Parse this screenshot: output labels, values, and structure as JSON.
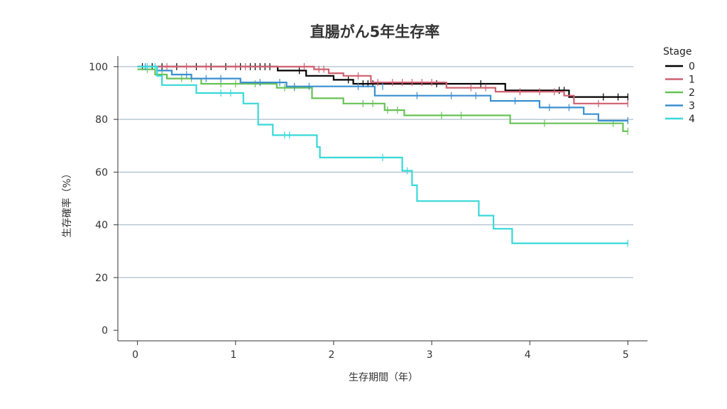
{
  "chart_data": {
    "type": "line",
    "subtype": "kaplan-meier-step",
    "title": "直腸がん5年生存率",
    "xlabel": "生存期間（年）",
    "ylabel": "生存確率（%）",
    "xlim": [
      -0.2,
      5.2
    ],
    "ylim": [
      -4,
      104
    ],
    "xticks": [
      0,
      1,
      2,
      3,
      4,
      5
    ],
    "xtick_labels": [
      "0",
      "1",
      "2",
      "3",
      "4",
      "5"
    ],
    "yticks": [
      0,
      20,
      40,
      60,
      80,
      100
    ],
    "ytick_labels": [
      "0",
      "20",
      "40",
      "60",
      "80",
      "100"
    ],
    "grid": "horizontal",
    "legend": {
      "title": "Stage",
      "position": "top-right"
    },
    "series": [
      {
        "name": "0",
        "color": "#000000",
        "steps": [
          [
            0,
            100
          ],
          [
            1.43,
            100
          ],
          [
            1.43,
            98.5
          ],
          [
            1.72,
            98.5
          ],
          [
            1.72,
            96.5
          ],
          [
            2.0,
            96.5
          ],
          [
            2.0,
            95
          ],
          [
            2.2,
            95
          ],
          [
            2.2,
            93.5
          ],
          [
            3.75,
            93.5
          ],
          [
            3.75,
            91
          ],
          [
            4.4,
            91
          ],
          [
            4.4,
            88.5
          ],
          [
            5.0,
            88.5
          ]
        ],
        "censored": [
          [
            0.05,
            100
          ],
          [
            0.15,
            100
          ],
          [
            0.25,
            100
          ],
          [
            0.4,
            100
          ],
          [
            0.6,
            100
          ],
          [
            0.75,
            100
          ],
          [
            0.9,
            100
          ],
          [
            1.05,
            100
          ],
          [
            1.15,
            100
          ],
          [
            1.2,
            100
          ],
          [
            1.25,
            100
          ],
          [
            1.3,
            100
          ],
          [
            1.35,
            100
          ],
          [
            1.65,
            98.5
          ],
          [
            2.15,
            95
          ],
          [
            2.3,
            93.5
          ],
          [
            2.35,
            93.5
          ],
          [
            2.4,
            93.5
          ],
          [
            3.05,
            93.5
          ],
          [
            3.5,
            93.5
          ],
          [
            4.3,
            91
          ],
          [
            4.35,
            91
          ],
          [
            4.75,
            88.5
          ],
          [
            4.9,
            88.5
          ],
          [
            5.0,
            88.5
          ]
        ]
      },
      {
        "name": "1",
        "color": "#d06070",
        "steps": [
          [
            0,
            100
          ],
          [
            1.8,
            100
          ],
          [
            1.8,
            99
          ],
          [
            1.95,
            99
          ],
          [
            1.95,
            97.5
          ],
          [
            2.1,
            97.5
          ],
          [
            2.1,
            96.5
          ],
          [
            2.38,
            96.5
          ],
          [
            2.38,
            94
          ],
          [
            3.15,
            94
          ],
          [
            3.15,
            92
          ],
          [
            3.65,
            92
          ],
          [
            3.65,
            90.5
          ],
          [
            4.35,
            90.5
          ],
          [
            4.35,
            89
          ],
          [
            4.45,
            89
          ],
          [
            4.45,
            86
          ],
          [
            5.0,
            86
          ]
        ],
        "censored": [
          [
            0.3,
            100
          ],
          [
            0.5,
            100
          ],
          [
            0.7,
            100
          ],
          [
            1.0,
            100
          ],
          [
            1.1,
            100
          ],
          [
            1.7,
            100
          ],
          [
            1.85,
            99
          ],
          [
            1.9,
            99
          ],
          [
            2.25,
            96.5
          ],
          [
            2.45,
            94
          ],
          [
            2.6,
            94
          ],
          [
            2.7,
            94
          ],
          [
            2.8,
            94
          ],
          [
            2.9,
            94
          ],
          [
            3.0,
            94
          ],
          [
            3.4,
            92
          ],
          [
            3.55,
            92
          ],
          [
            3.9,
            90.5
          ],
          [
            4.1,
            90.5
          ],
          [
            4.25,
            90.5
          ],
          [
            4.7,
            86
          ],
          [
            5.0,
            86
          ]
        ]
      },
      {
        "name": "2",
        "color": "#66c255",
        "steps": [
          [
            0,
            99
          ],
          [
            0.18,
            99
          ],
          [
            0.18,
            97
          ],
          [
            0.3,
            97
          ],
          [
            0.3,
            95.5
          ],
          [
            0.65,
            95.5
          ],
          [
            0.65,
            93.5
          ],
          [
            1.42,
            93.5
          ],
          [
            1.42,
            92
          ],
          [
            1.78,
            92
          ],
          [
            1.78,
            88
          ],
          [
            2.1,
            88
          ],
          [
            2.1,
            86
          ],
          [
            2.52,
            86
          ],
          [
            2.52,
            83.5
          ],
          [
            2.72,
            83.5
          ],
          [
            2.72,
            81.5
          ],
          [
            3.8,
            81.5
          ],
          [
            3.8,
            78.5
          ],
          [
            4.95,
            78.5
          ],
          [
            4.95,
            75.5
          ],
          [
            5.0,
            75.5
          ]
        ],
        "censored": [
          [
            0.1,
            99
          ],
          [
            0.25,
            97
          ],
          [
            0.45,
            95.5
          ],
          [
            0.55,
            95.5
          ],
          [
            0.85,
            93.5
          ],
          [
            1.0,
            93.5
          ],
          [
            1.2,
            93.5
          ],
          [
            1.5,
            92
          ],
          [
            1.6,
            92
          ],
          [
            2.3,
            86
          ],
          [
            2.4,
            86
          ],
          [
            2.55,
            83.5
          ],
          [
            2.65,
            83.5
          ],
          [
            3.1,
            81.5
          ],
          [
            3.3,
            81.5
          ],
          [
            4.15,
            78.5
          ],
          [
            4.85,
            78.5
          ],
          [
            5.0,
            75.5
          ]
        ]
      },
      {
        "name": "3",
        "color": "#3a8fd0",
        "steps": [
          [
            0,
            100
          ],
          [
            0.2,
            100
          ],
          [
            0.2,
            98.5
          ],
          [
            0.35,
            98.5
          ],
          [
            0.35,
            97
          ],
          [
            0.55,
            97
          ],
          [
            0.55,
            95.5
          ],
          [
            1.05,
            95.5
          ],
          [
            1.05,
            94
          ],
          [
            1.52,
            94
          ],
          [
            1.52,
            92.5
          ],
          [
            2.42,
            92.5
          ],
          [
            2.42,
            89
          ],
          [
            3.6,
            89
          ],
          [
            3.6,
            87
          ],
          [
            4.1,
            87
          ],
          [
            4.1,
            84.5
          ],
          [
            4.55,
            84.5
          ],
          [
            4.55,
            82
          ],
          [
            4.7,
            82
          ],
          [
            4.7,
            79.5
          ],
          [
            5.0,
            79.5
          ]
        ],
        "censored": [
          [
            0.08,
            100
          ],
          [
            0.5,
            97
          ],
          [
            0.7,
            95.5
          ],
          [
            0.85,
            95.5
          ],
          [
            1.25,
            94
          ],
          [
            1.45,
            94
          ],
          [
            1.6,
            92.5
          ],
          [
            1.75,
            92.5
          ],
          [
            2.25,
            92.5
          ],
          [
            2.5,
            92.5
          ],
          [
            2.85,
            89
          ],
          [
            3.2,
            89
          ],
          [
            3.45,
            89
          ],
          [
            3.85,
            87
          ],
          [
            4.2,
            84.5
          ],
          [
            4.4,
            84.5
          ],
          [
            5.0,
            79.5
          ]
        ]
      },
      {
        "name": "4",
        "color": "#38d8d8",
        "steps": [
          [
            0,
            100
          ],
          [
            0.2,
            100
          ],
          [
            0.2,
            96.5
          ],
          [
            0.25,
            96.5
          ],
          [
            0.25,
            93
          ],
          [
            0.6,
            93
          ],
          [
            0.6,
            90
          ],
          [
            1.08,
            90
          ],
          [
            1.08,
            86
          ],
          [
            1.23,
            86
          ],
          [
            1.23,
            78
          ],
          [
            1.38,
            78
          ],
          [
            1.38,
            74
          ],
          [
            1.83,
            74
          ],
          [
            1.83,
            69.5
          ],
          [
            1.86,
            69.5
          ],
          [
            1.86,
            65.5
          ],
          [
            2.7,
            65.5
          ],
          [
            2.7,
            60.5
          ],
          [
            2.8,
            60.5
          ],
          [
            2.8,
            55
          ],
          [
            2.85,
            55
          ],
          [
            2.85,
            49
          ],
          [
            3.48,
            49
          ],
          [
            3.48,
            43.5
          ],
          [
            3.63,
            43.5
          ],
          [
            3.63,
            38.5
          ],
          [
            3.82,
            38.5
          ],
          [
            3.82,
            33
          ],
          [
            5.0,
            33
          ]
        ],
        "censored": [
          [
            0.1,
            100
          ],
          [
            0.18,
            100
          ],
          [
            0.85,
            90
          ],
          [
            0.95,
            90
          ],
          [
            1.5,
            74
          ],
          [
            1.55,
            74
          ],
          [
            2.5,
            65.5
          ],
          [
            2.75,
            60.5
          ],
          [
            5.0,
            33
          ]
        ]
      }
    ]
  }
}
